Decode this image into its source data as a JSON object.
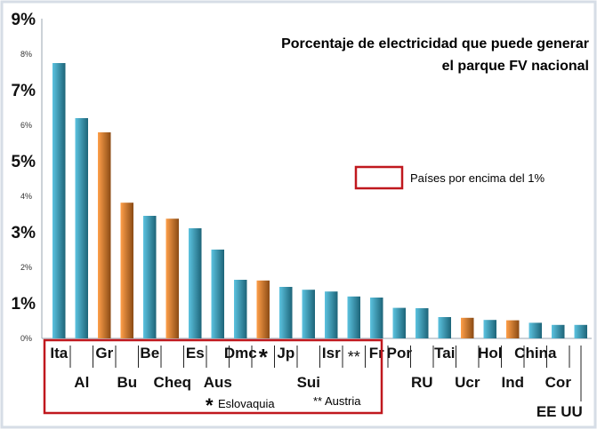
{
  "chart_data": {
    "type": "bar",
    "title_lines": [
      "Porcentaje de electricidad que puede generar",
      "el parque FV nacional"
    ],
    "ylim": [
      0,
      9
    ],
    "yticks_major": [
      {
        "value": 1,
        "label": "1%"
      },
      {
        "value": 3,
        "label": "3%"
      },
      {
        "value": 5,
        "label": "5%"
      },
      {
        "value": 7,
        "label": "7%"
      },
      {
        "value": 9,
        "label": "9%"
      }
    ],
    "yticks_minor": [
      {
        "value": 0,
        "label": "0%"
      },
      {
        "value": 2,
        "label": "2%"
      },
      {
        "value": 4,
        "label": "4%"
      },
      {
        "value": 6,
        "label": "6%"
      },
      {
        "value": 8,
        "label": "8%"
      }
    ],
    "categories": [
      "Ita",
      "Al",
      "Gr",
      "Bu",
      "Be",
      "Cheq",
      "Es",
      "Aus",
      "Dmc",
      "*",
      "Jp",
      "Sui",
      "Isr",
      "**",
      "Fr",
      "Por",
      "RU",
      "Tai",
      "Ucr",
      "Hol",
      "Ind",
      "China",
      "Cor",
      "EE UU"
    ],
    "values": [
      7.75,
      6.2,
      5.8,
      3.82,
      3.45,
      3.37,
      3.1,
      2.5,
      1.65,
      1.63,
      1.45,
      1.37,
      1.32,
      1.18,
      1.15,
      0.86,
      0.85,
      0.6,
      0.58,
      0.52,
      0.51,
      0.44,
      0.38,
      0.38
    ],
    "colors": [
      "blue",
      "blue",
      "orange",
      "orange",
      "blue",
      "orange",
      "blue",
      "blue",
      "blue",
      "orange",
      "blue",
      "blue",
      "blue",
      "blue",
      "blue",
      "blue",
      "blue",
      "blue",
      "orange",
      "blue",
      "orange",
      "blue",
      "blue",
      "blue"
    ],
    "label_rows": [
      1,
      0,
      1,
      0,
      1,
      0,
      1,
      0,
      1,
      0,
      1,
      0,
      1,
      0,
      1,
      1,
      0,
      1,
      0,
      1,
      0,
      1,
      0,
      2
    ],
    "legend": {
      "label": "Países por encima del 1%"
    },
    "notes": {
      "star_symbol": "*",
      "star_text": "Eslovaquia",
      "double_star_text": "** Austria"
    },
    "palette": {
      "blue_light": "#5cc3e0",
      "blue_dark": "#1d6478",
      "orange_light": "#ffa04a",
      "orange_dark": "#8a4a14",
      "highlight_box": "#c0181e",
      "border": "#d6dde6"
    }
  }
}
